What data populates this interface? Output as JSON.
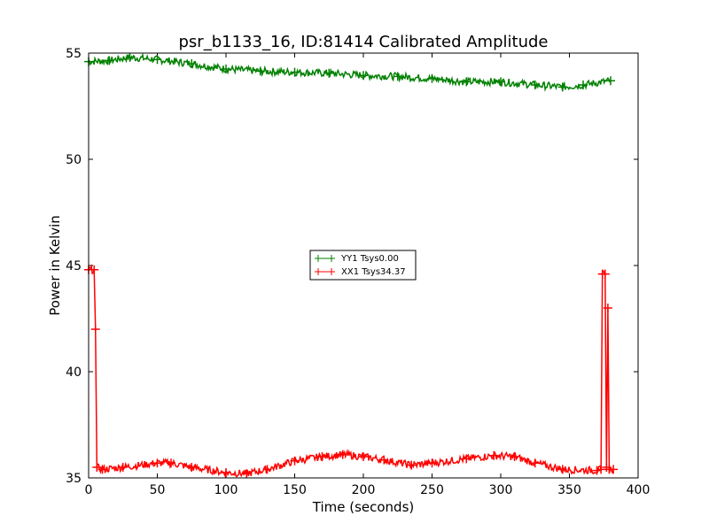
{
  "chart_data": {
    "type": "line",
    "title": "psr_b1133_16, ID:81414 Calibrated Amplitude",
    "xlabel": "Time (seconds)",
    "ylabel": "Power in Kelvin",
    "xlim": [
      0,
      400
    ],
    "ylim": [
      35,
      55
    ],
    "xticks": [
      "0",
      "50",
      "100",
      "150",
      "200",
      "250",
      "300",
      "350",
      "400"
    ],
    "yticks": [
      "35",
      "40",
      "45",
      "50",
      "55"
    ],
    "grid": false,
    "legend_placement": "center",
    "series": [
      {
        "name": "YY1 Tsys0.00",
        "color": "#008000",
        "marker": "+",
        "x": [
          0,
          15,
          30,
          50,
          75,
          100,
          125,
          150,
          175,
          200,
          225,
          250,
          275,
          300,
          325,
          345,
          360,
          380
        ],
        "y": [
          54.6,
          54.65,
          54.8,
          54.7,
          54.5,
          54.25,
          54.15,
          54.1,
          54.05,
          53.95,
          53.9,
          53.8,
          53.65,
          53.65,
          53.5,
          53.4,
          53.5,
          53.7
        ]
      },
      {
        "name": "XX1 Tsys34.37",
        "color": "#ff0000",
        "marker": "+",
        "x": [
          0,
          4,
          5,
          6,
          10,
          25,
          50,
          60,
          75,
          100,
          115,
          130,
          150,
          170,
          185,
          200,
          215,
          235,
          250,
          275,
          295,
          310,
          325,
          345,
          370,
          373,
          374,
          376,
          377,
          378,
          379,
          382
        ],
        "y": [
          44.8,
          44.8,
          42.0,
          35.5,
          35.4,
          35.5,
          35.7,
          35.7,
          35.5,
          35.25,
          35.2,
          35.4,
          35.8,
          36.0,
          36.1,
          36.0,
          35.85,
          35.6,
          35.7,
          35.9,
          36.05,
          36.0,
          35.7,
          35.4,
          35.35,
          35.4,
          44.6,
          44.6,
          35.5,
          43.0,
          35.4,
          35.4
        ]
      }
    ]
  }
}
